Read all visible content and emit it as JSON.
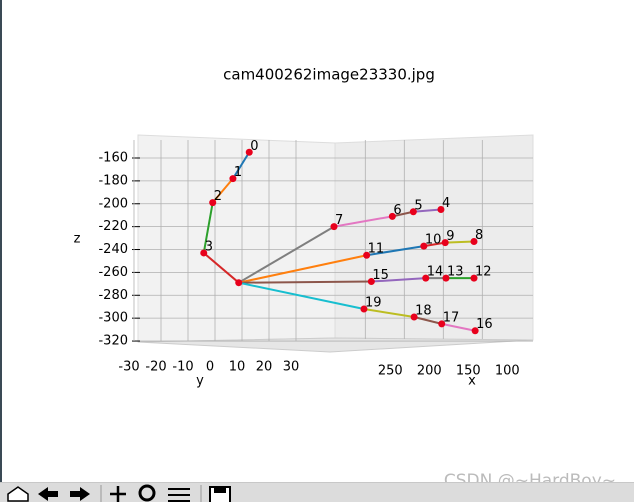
{
  "chart_data": {
    "type": "scatter3d",
    "title": "cam400262image23330.jpg",
    "xlabel": "x",
    "ylabel": "y",
    "zlabel": "z",
    "x": [
      327,
      341,
      360,
      368,
      147,
      172,
      192,
      246,
      115,
      145,
      162,
      218,
      115,
      144,
      163,
      212,
      117,
      146,
      171,
      218,
      337
    ],
    "y": [
      5,
      3,
      1,
      0,
      24,
      21,
      19,
      13,
      27,
      25,
      22,
      17,
      27,
      25,
      23,
      17,
      28,
      24,
      21,
      16,
      4
    ],
    "z": [
      -155,
      -178,
      -199,
      -243,
      -205,
      -207,
      -211,
      -220,
      -233,
      -234,
      -237,
      -245,
      -265,
      -265,
      -265,
      -268,
      -311,
      -305,
      -299,
      -292,
      -269
    ],
    "point_labels": [
      "0",
      "1",
      "2",
      "3",
      "4",
      "5",
      "6",
      "7",
      "8",
      "9",
      "10",
      "11",
      "12",
      "13",
      "14",
      "15",
      "16",
      "17",
      "18",
      "19",
      null
    ],
    "point_color": "#e8001c",
    "xlim": [
      90,
      375
    ],
    "ylim": [
      -35,
      40
    ],
    "zlim": [
      -330,
      -150
    ],
    "xticks": [
      250,
      200,
      150,
      100
    ],
    "yticks": [
      -30,
      -20,
      -10,
      0,
      10,
      20,
      30
    ],
    "zticks": [
      -160,
      -180,
      -200,
      -220,
      -240,
      -260,
      -280,
      -300,
      -320
    ],
    "grid": true
  },
  "watermark": "CSDN @~HardBoy~"
}
